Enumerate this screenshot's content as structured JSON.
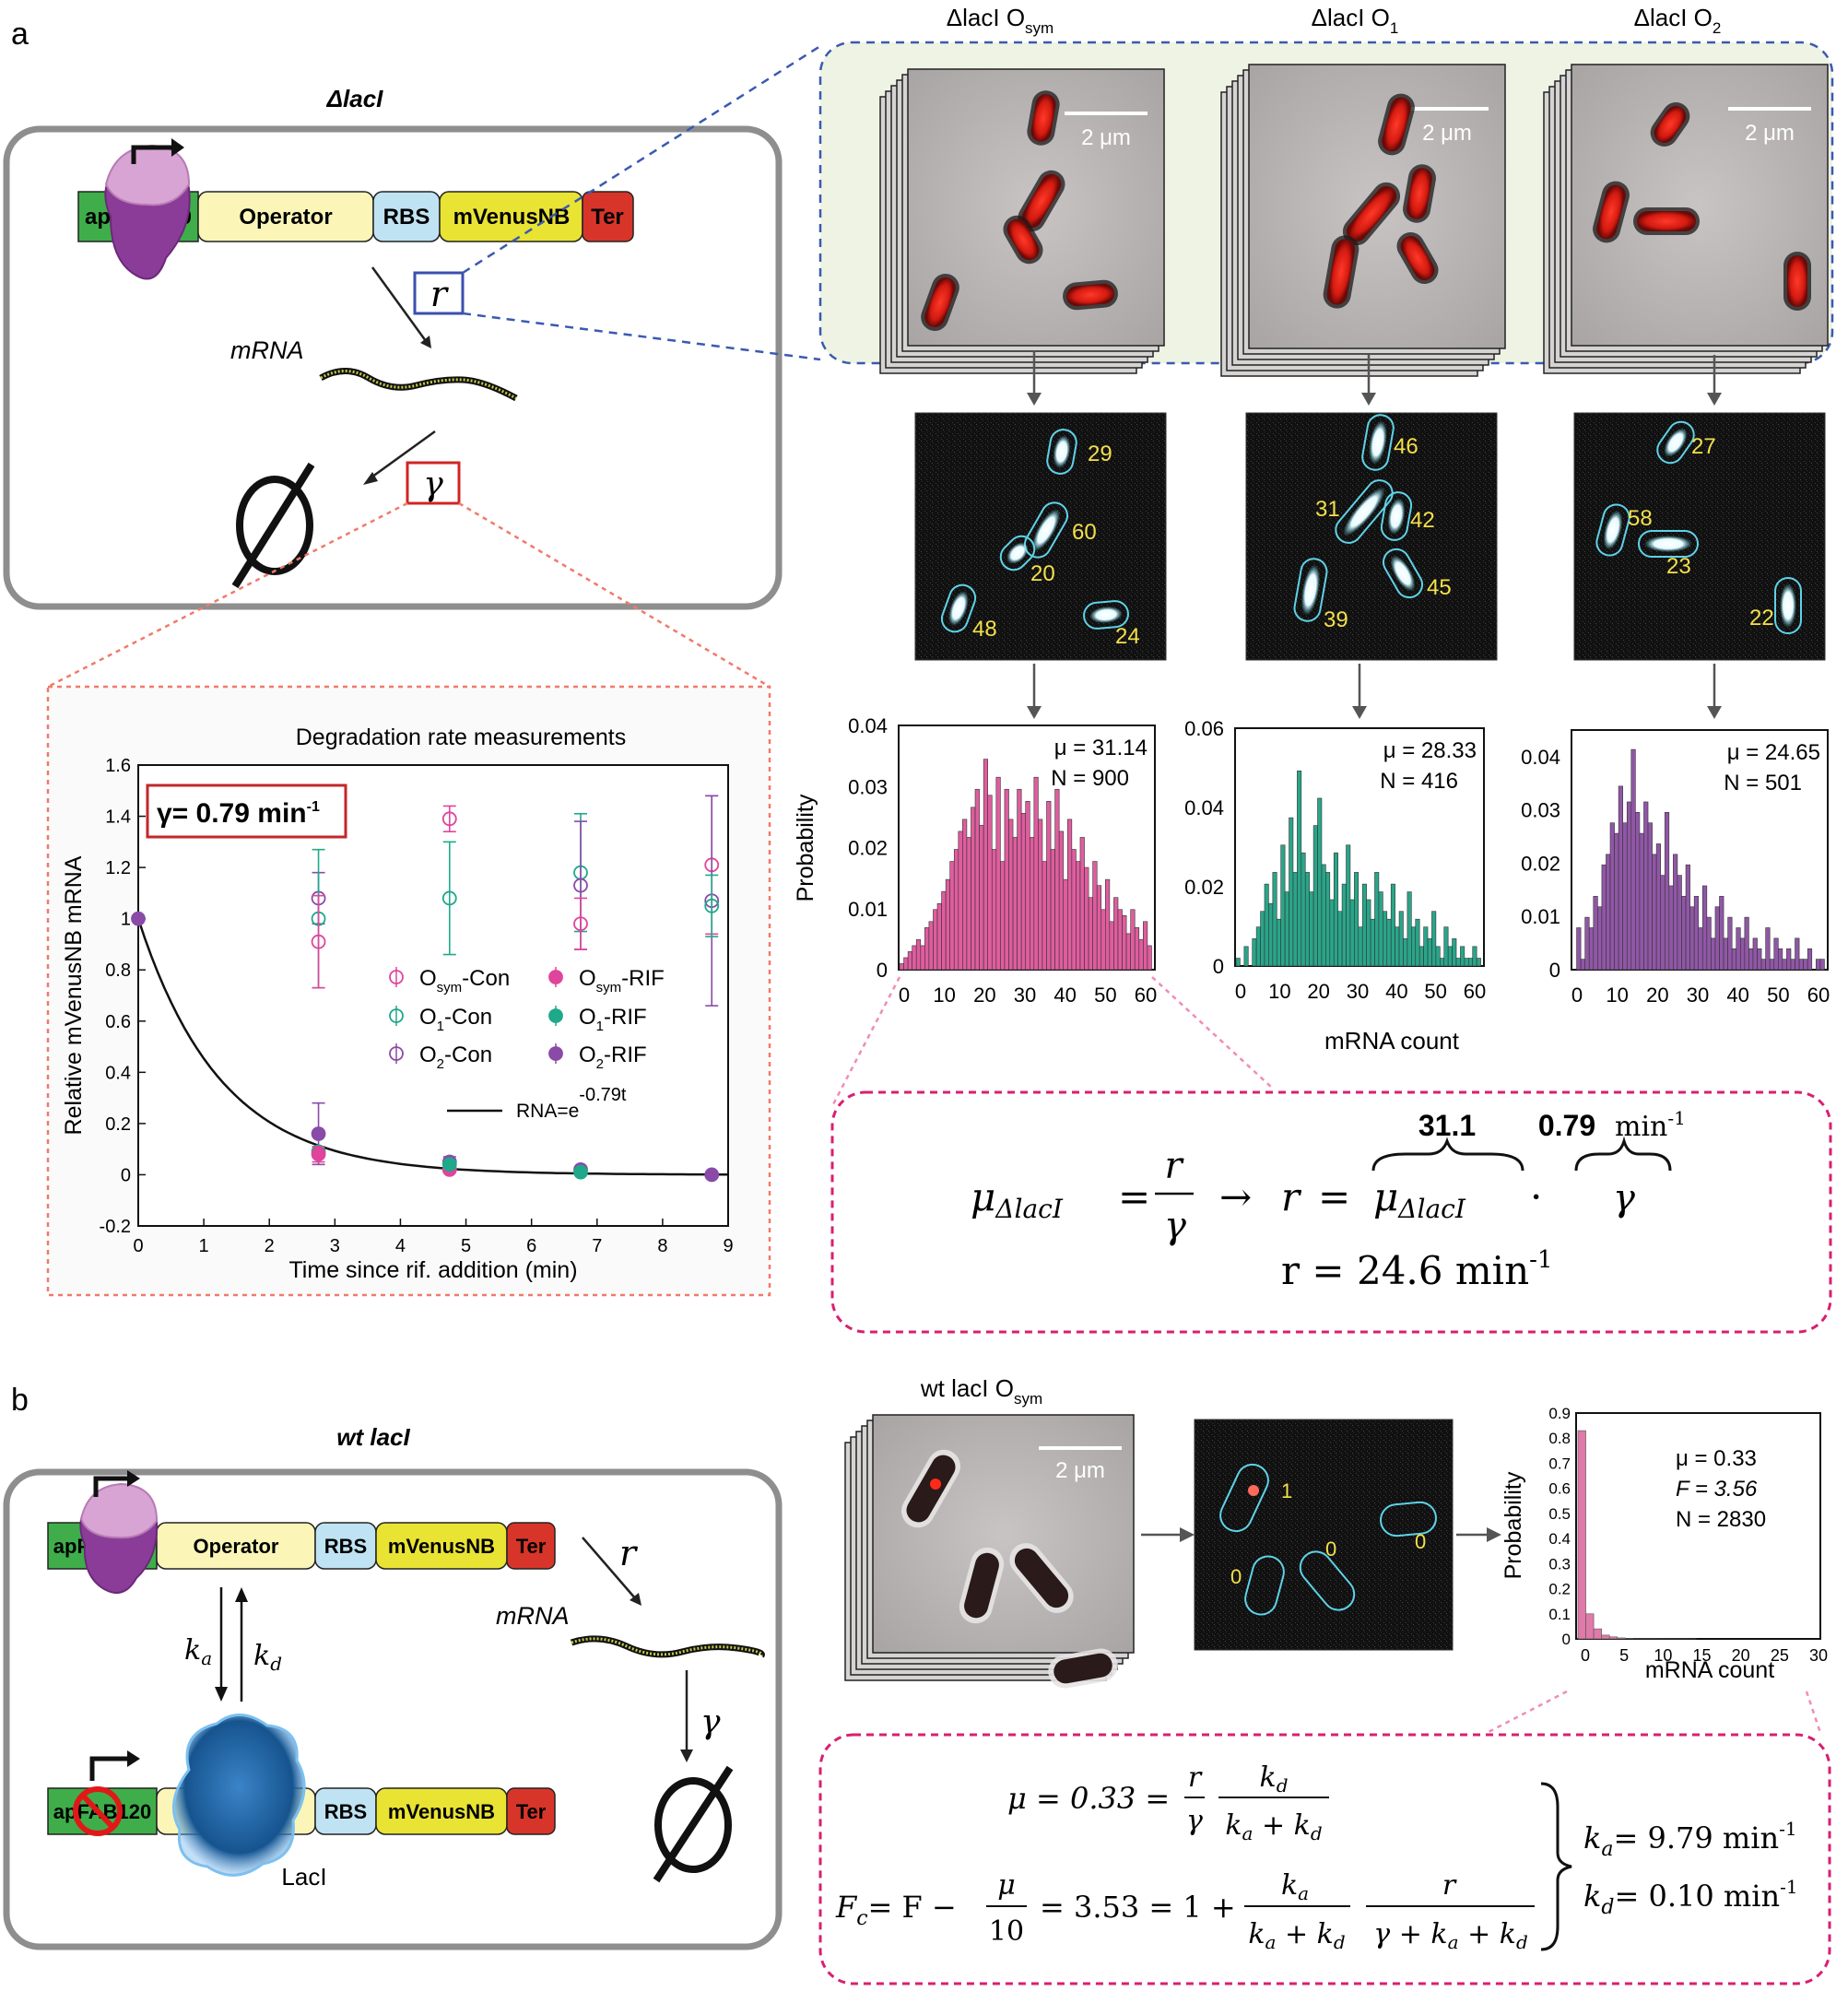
{
  "panel_a": {
    "letter": "a",
    "cell_title": "ΔlacI",
    "promoter_label": "apFAB120",
    "genes": [
      "Operator",
      "RBS",
      "mVenusNB",
      "Ter"
    ],
    "rate_r": "r",
    "rate_gamma": "γ",
    "mrna_label": "mRNA",
    "strains": [
      {
        "label": "ΔlacI O",
        "sub": "sym",
        "scale": "2 μm"
      },
      {
        "label": "ΔlacI O",
        "sub": "1",
        "scale": "2 μm"
      },
      {
        "label": "ΔlacI O",
        "sub": "2",
        "scale": "2 μm"
      }
    ],
    "cell_counts": [
      [
        "29",
        "60",
        "20",
        "48",
        "24"
      ],
      [
        "46",
        "31",
        "42",
        "45",
        "39"
      ],
      [
        "27",
        "58",
        "23",
        "22"
      ]
    ],
    "degradation_chart": {
      "title": "Degradation rate measurements",
      "gamma_box": "γ= 0.79 min",
      "gamma_exp": "-1",
      "ylabel": "Relative mVenusNB mRNA",
      "xlabel": "Time since rif. addition (min)",
      "legend": {
        "osym_con": "O",
        "osym_con_sub": "sym",
        "osym_con_suffix": "-Con",
        "o1_con": "O",
        "o1_con_sub": "1",
        "o1_con_suffix": "-Con",
        "o2_con": "O",
        "o2_con_sub": "2",
        "o2_con_suffix": "-Con",
        "osym_rif": "O",
        "osym_rif_sub": "sym",
        "osym_rif_suffix": "-RIF",
        "o1_rif": "O",
        "o1_rif_sub": "1",
        "o1_rif_suffix": "-RIF",
        "o2_rif": "O",
        "o2_rif_sub": "2",
        "o2_rif_suffix": "-RIF",
        "fit": "RNA=e",
        "fit_exp": "-0.79t"
      },
      "colors": {
        "osym": "#e0449c",
        "o1": "#1fa88a",
        "o2": "#8a4aa8"
      }
    },
    "histograms": [
      {
        "mu": "μ = 31.14",
        "n": "N = 900",
        "color": "#df5d9e",
        "ylabel": "Probability",
        "yticks": [
          "0.04",
          "0.03",
          "0.02",
          "0.01",
          "0"
        ],
        "xticks": [
          "0",
          "10",
          "20",
          "30",
          "40",
          "50",
          "60"
        ]
      },
      {
        "mu": "μ = 28.33",
        "n": "N = 416",
        "color": "#2aa589",
        "yticks": [
          "0.06",
          "0.04",
          "0.02",
          "0"
        ],
        "xticks": [
          "0",
          "10",
          "20",
          "30",
          "40",
          "50",
          "60"
        ]
      },
      {
        "mu": "μ = 24.65",
        "n": "N = 501",
        "color": "#9057a6",
        "yticks": [
          "0.04",
          "0.03",
          "0.02",
          "0.01",
          "0"
        ],
        "xticks": [
          "0",
          "10",
          "20",
          "30",
          "40",
          "50",
          "60"
        ]
      }
    ],
    "hist_xlabel": "mRNA count",
    "equation": {
      "mu_val": "31.1",
      "gamma_val": "0.79",
      "gamma_unit": "min",
      "gamma_unit_exp": "-1",
      "result": "r =  24.6  min",
      "result_exp": "-1"
    }
  },
  "panel_b": {
    "letter": "b",
    "cell_title": "wt lacI",
    "promoter_label": "apFAB120",
    "genes": [
      "Operator",
      "RBS",
      "mVenusNB",
      "Ter"
    ],
    "ka": "k",
    "kd": "k",
    "repressor_label": "LacI",
    "mrna_label": "mRNA",
    "strain": {
      "label": "wt lacI O",
      "sub": "sym",
      "scale": "2 μm"
    },
    "cell_counts": [
      "1",
      "0",
      "0",
      "0"
    ],
    "histogram": {
      "mu": "μ  = 0.33",
      "f": "F = 3.56",
      "n": "N = 2830",
      "ylabel": "Probability",
      "xlabel": "mRNA count",
      "yticks": [
        "0.9",
        "0.8",
        "0.7",
        "0.6",
        "0.5",
        "0.4",
        "0.3",
        "0.2",
        "0.1",
        "0"
      ],
      "xticks": [
        "0",
        "5",
        "10",
        "15",
        "20",
        "25",
        "30"
      ],
      "color": "#e07aa8"
    },
    "equations": {
      "mu_line": "μ = 0.33 =",
      "fc_line": "F",
      "fc_mid": "= F −",
      "fc_val": "= 3.53 = 1 +",
      "ka_result": "= 9.79 min",
      "kd_result": "= 0.10 min",
      "exp": "-1"
    }
  }
}
